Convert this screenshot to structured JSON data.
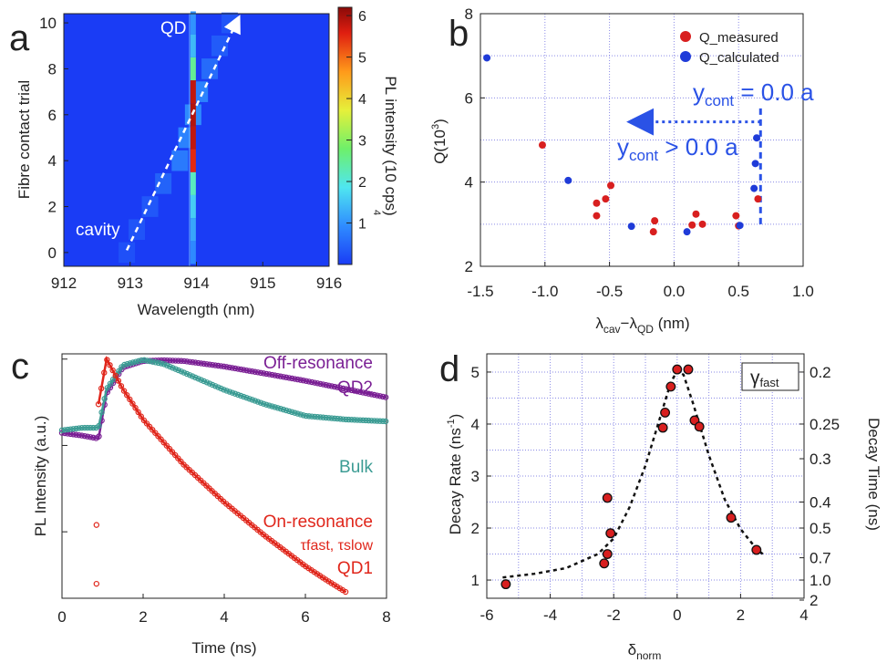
{
  "colors": {
    "measured": "#d81f1f",
    "calculated": "#1f3bd8",
    "annotation_blue": "#2a52e6",
    "off_resonance": "#7a1f94",
    "bulk": "#3c9c94",
    "on_resonance": "#e0261b",
    "gridline": "#8a8ae6",
    "heat_background": "#1a3cf5"
  },
  "chart_data": [
    {
      "panel": "a",
      "type": "heatmap",
      "xlabel": "Wavelength (nm)",
      "ylabel": "Fibre contact trial",
      "colorbar_label": "PL intensity (10 cps)",
      "colorbar_exponent": "4",
      "colorbar_ticks": [
        "1",
        "2",
        "3",
        "4",
        "5",
        "6"
      ],
      "colorbar_range": [
        0,
        6.2
      ],
      "xlim": [
        912,
        916
      ],
      "ylim": [
        -0.6,
        10.4
      ],
      "x_ticks": [
        "912",
        "913",
        "914",
        "915",
        "916"
      ],
      "y_ticks": [
        "0",
        "2",
        "4",
        "6",
        "8",
        "10"
      ],
      "qd_line_nm": 913.95,
      "cavity_arrow": {
        "start": [
          912.95,
          0.1
        ],
        "end": [
          914.6,
          10.0
        ]
      },
      "annotations": {
        "qd": "QD",
        "cavity": "cavity"
      },
      "rows": [
        {
          "trial": 0,
          "cavity_nm": 912.95,
          "cavity_intensity": 0.25,
          "qd_intensity": 0.9
        },
        {
          "trial": 1,
          "cavity_nm": 913.1,
          "cavity_intensity": 0.3,
          "qd_intensity": 1.2
        },
        {
          "trial": 2,
          "cavity_nm": 913.3,
          "cavity_intensity": 0.35,
          "qd_intensity": 1.6
        },
        {
          "trial": 3,
          "cavity_nm": 913.5,
          "cavity_intensity": 0.5,
          "qd_intensity": 2.2
        },
        {
          "trial": 4,
          "cavity_nm": 913.75,
          "cavity_intensity": 0.8,
          "qd_intensity": 5.5
        },
        {
          "trial": 5,
          "cavity_nm": 913.85,
          "cavity_intensity": 0.9,
          "qd_intensity": 5.8
        },
        {
          "trial": 6,
          "cavity_nm": 913.95,
          "cavity_intensity": 1.0,
          "qd_intensity": 5.9
        },
        {
          "trial": 7,
          "cavity_nm": 914.05,
          "cavity_intensity": 0.9,
          "qd_intensity": 5.8
        },
        {
          "trial": 8,
          "cavity_nm": 914.2,
          "cavity_intensity": 0.6,
          "qd_intensity": 2.5
        },
        {
          "trial": 9,
          "cavity_nm": 914.35,
          "cavity_intensity": 0.4,
          "qd_intensity": 1.4
        },
        {
          "trial": 10,
          "cavity_nm": 914.5,
          "cavity_intensity": 0.3,
          "qd_intensity": 1.0
        }
      ]
    },
    {
      "panel": "b",
      "type": "scatter",
      "xlabel": "λ",
      "xlabel_sub1": "cav",
      "xlabel_mid": "−λ",
      "xlabel_sub2": "QD",
      "xlabel_unit": " (nm)",
      "ylabel": "Q(10",
      "ylabel_exp": "3",
      "ylabel_close": ")",
      "xlim": [
        -1.5,
        1.0
      ],
      "ylim": [
        2,
        8
      ],
      "x_ticks": [
        "-1.5",
        "-1.0",
        "-0.5",
        "0.0",
        "0.5",
        "1.0"
      ],
      "y_ticks": [
        "2",
        "4",
        "6",
        "8"
      ],
      "legend_position": "top-right",
      "series": [
        {
          "name": "Q_measured",
          "points": [
            [
              -1.02,
              4.88
            ],
            [
              -0.6,
              3.5
            ],
            [
              -0.6,
              3.2
            ],
            [
              -0.53,
              3.6
            ],
            [
              -0.49,
              3.92
            ],
            [
              -0.16,
              2.82
            ],
            [
              -0.15,
              3.08
            ],
            [
              0.17,
              3.24
            ],
            [
              0.22,
              3.0
            ],
            [
              0.14,
              2.98
            ],
            [
              0.48,
              3.2
            ],
            [
              0.5,
              2.96
            ],
            [
              0.65,
              3.6
            ]
          ]
        },
        {
          "name": "Q_calculated",
          "points": [
            [
              -1.45,
              6.95
            ],
            [
              -0.82,
              4.04
            ],
            [
              -0.33,
              2.95
            ],
            [
              0.1,
              2.82
            ],
            [
              0.51,
              2.97
            ],
            [
              0.62,
              3.85
            ],
            [
              0.63,
              4.44
            ],
            [
              0.64,
              5.05
            ]
          ]
        }
      ],
      "annotations": {
        "y_eq_prefix": "y",
        "y_eq_sub": "cont",
        "y_eq_rest": " = 0.0 a",
        "y_gt_prefix": "y",
        "y_gt_sub": "cont",
        "y_gt_rest": " > 0.0 a"
      },
      "vline_x": 0.67,
      "arrow_y": 5.43,
      "arrow_x_end": -0.2
    },
    {
      "panel": "c",
      "type": "line",
      "xlabel": "Time (ns)",
      "ylabel": "PL Intensity (a.u.)",
      "yscale": "log",
      "xlim": [
        0,
        8
      ],
      "x_ticks": [
        "0",
        "2",
        "4",
        "6",
        "8"
      ],
      "series": [
        {
          "name": "Off-resonance QD2",
          "label_line1": "Off-resonance",
          "label_line2": "QD2",
          "x": [
            0,
            0.5,
            0.9,
            1.1,
            1.5,
            2.0,
            2.5,
            3.0,
            4.0,
            5.0,
            6.0,
            7.0,
            8.0
          ],
          "y": [
            0.14,
            0.13,
            0.12,
            0.4,
            0.8,
            0.95,
            0.97,
            0.95,
            0.82,
            0.68,
            0.56,
            0.45,
            0.36
          ]
        },
        {
          "name": "Bulk",
          "label_line1": "Bulk",
          "x": [
            0,
            0.5,
            0.9,
            1.1,
            1.5,
            2.0,
            2.5,
            3.0,
            4.0,
            5.0,
            6.0,
            7.0,
            8.0
          ],
          "y": [
            0.15,
            0.16,
            0.16,
            0.45,
            0.85,
            0.98,
            0.88,
            0.7,
            0.44,
            0.3,
            0.22,
            0.2,
            0.19
          ]
        },
        {
          "name": "On-resonance QD1",
          "label_line1": "On-resonance",
          "label_line2": "τfast, τslow",
          "label_line3": "QD1",
          "x": [
            0.9,
            1.1,
            1.5,
            2.0,
            3.0,
            4.0,
            5.0,
            6.0,
            6.5,
            7.0
          ],
          "y": [
            0.3,
            1.0,
            0.45,
            0.2,
            0.06,
            0.022,
            0.009,
            0.004,
            0.0028,
            0.002
          ]
        }
      ]
    },
    {
      "panel": "d",
      "type": "scatter",
      "xlabel": "δ",
      "xlabel_sub": "norm",
      "ylabel": "Decay Rate (ns",
      "ylabel_exp": "-1",
      "ylabel_close": ")",
      "y2label": "Decay Time (ns)",
      "legend_label": "γ",
      "legend_sub": "fast",
      "xlim": [
        -6,
        4
      ],
      "ylim": [
        0.65,
        5.35
      ],
      "x_ticks": [
        "-6",
        "-4",
        "-2",
        "0",
        "2",
        "4"
      ],
      "y_ticks": [
        "1",
        "2",
        "3",
        "4",
        "5"
      ],
      "y2_ticks": [
        {
          "label": "0.2",
          "rate": 5.0
        },
        {
          "label": "0.25",
          "rate": 4.0
        },
        {
          "label": "0.3",
          "rate": 3.333
        },
        {
          "label": "0.4",
          "rate": 2.5
        },
        {
          "label": "0.5",
          "rate": 2.0
        },
        {
          "label": "0.7",
          "rate": 1.4286
        },
        {
          "label": "1.0",
          "rate": 1.0
        },
        {
          "label": "2",
          "rate": 0.5
        }
      ],
      "points": [
        [
          -5.4,
          0.92
        ],
        [
          -2.3,
          1.32
        ],
        [
          -2.2,
          1.5
        ],
        [
          -2.1,
          1.9
        ],
        [
          -2.2,
          2.58
        ],
        [
          -0.45,
          3.93
        ],
        [
          -0.38,
          4.22
        ],
        [
          -0.2,
          4.72
        ],
        [
          0.0,
          5.05
        ],
        [
          0.35,
          5.05
        ],
        [
          0.55,
          4.07
        ],
        [
          0.7,
          3.95
        ],
        [
          1.7,
          2.2
        ],
        [
          2.5,
          1.58
        ]
      ],
      "fit_curve": [
        [
          -5.5,
          1.05
        ],
        [
          -4.5,
          1.12
        ],
        [
          -3.5,
          1.23
        ],
        [
          -2.5,
          1.5
        ],
        [
          -2.0,
          1.8
        ],
        [
          -1.5,
          2.4
        ],
        [
          -1.0,
          3.2
        ],
        [
          -0.5,
          4.2
        ],
        [
          -0.2,
          4.8
        ],
        [
          0.0,
          5.02
        ],
        [
          0.2,
          4.95
        ],
        [
          0.5,
          4.4
        ],
        [
          1.0,
          3.4
        ],
        [
          1.5,
          2.55
        ],
        [
          2.0,
          1.98
        ],
        [
          2.5,
          1.6
        ],
        [
          2.7,
          1.5
        ]
      ]
    }
  ],
  "panel_labels": [
    "a",
    "b",
    "c",
    "d"
  ]
}
